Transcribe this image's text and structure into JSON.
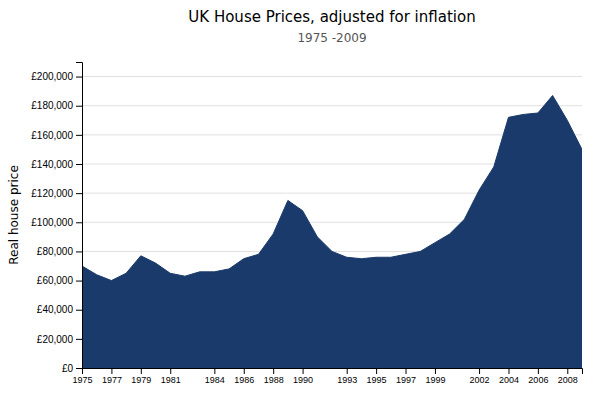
{
  "chart_data": {
    "type": "area",
    "title": "UK House Prices, adjusted for inflation",
    "subtitle": "1975 -2009",
    "ylabel": "Real house price",
    "color": "#1a3a6b",
    "grid": "y",
    "xlim": [
      1975,
      2009
    ],
    "ylim": [
      0,
      210000
    ],
    "xticks": [
      1975,
      1977,
      1979,
      1981,
      1984,
      1986,
      1988,
      1990,
      1993,
      1995,
      1997,
      1999,
      2002,
      2004,
      2006,
      2008
    ],
    "yticks": [
      {
        "value": 0,
        "label": "£0"
      },
      {
        "value": 20000,
        "label": "£20,000"
      },
      {
        "value": 40000,
        "label": "£40,000"
      },
      {
        "value": 60000,
        "label": "£60,000"
      },
      {
        "value": 80000,
        "label": "£80,000"
      },
      {
        "value": 100000,
        "label": "£100,000"
      },
      {
        "value": 120000,
        "label": "£120,000"
      },
      {
        "value": 140000,
        "label": "£140,000"
      },
      {
        "value": 160000,
        "label": "£160,000"
      },
      {
        "value": 180000,
        "label": "£180,000"
      },
      {
        "value": 200000,
        "label": "£200,000"
      }
    ],
    "x": [
      1975,
      1976,
      1977,
      1978,
      1979,
      1980,
      1981,
      1982,
      1983,
      1984,
      1985,
      1986,
      1987,
      1988,
      1989,
      1990,
      1991,
      1992,
      1993,
      1994,
      1995,
      1996,
      1997,
      1998,
      1999,
      2000,
      2001,
      2002,
      2003,
      2004,
      2005,
      2006,
      2007,
      2008,
      2009
    ],
    "values": [
      70000,
      64000,
      60000,
      65000,
      77000,
      72000,
      65000,
      63000,
      66000,
      66000,
      68000,
      75000,
      78000,
      92000,
      115000,
      108000,
      90000,
      80000,
      76000,
      75000,
      76000,
      76000,
      78000,
      80000,
      86000,
      92000,
      102000,
      122000,
      138000,
      172000,
      174000,
      175000,
      187000,
      170000,
      150000
    ]
  }
}
